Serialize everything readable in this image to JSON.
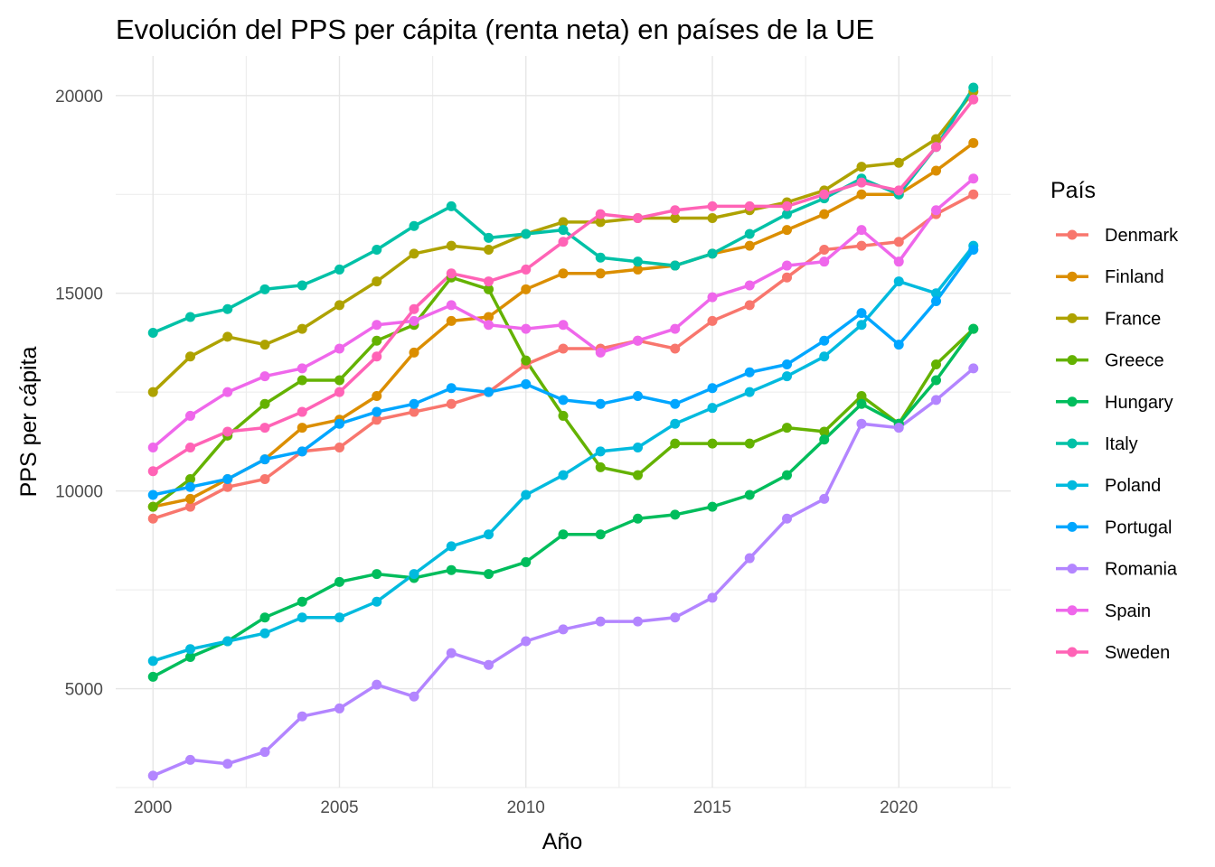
{
  "chart_data": {
    "type": "line",
    "title": "Evolución del PPS per cápita (renta neta) en países de la UE",
    "xlabel": "Año",
    "ylabel": "PPS per cápita",
    "xlim": [
      1999,
      2023
    ],
    "ylim": [
      2500,
      21000
    ],
    "xticks": [
      2000,
      2005,
      2010,
      2015,
      2020
    ],
    "yticks": [
      5000,
      10000,
      15000,
      20000
    ],
    "grid": true,
    "markers": true,
    "legend": {
      "title": "País",
      "position": "right"
    },
    "x": [
      2000,
      2001,
      2002,
      2003,
      2004,
      2005,
      2006,
      2007,
      2008,
      2009,
      2010,
      2011,
      2012,
      2013,
      2014,
      2015,
      2016,
      2017,
      2018,
      2019,
      2020,
      2021,
      2022
    ],
    "series": [
      {
        "name": "Denmark",
        "color": "#F8766D",
        "values": [
          9300,
          9600,
          10100,
          10300,
          11000,
          11100,
          11800,
          12000,
          12200,
          12500,
          13200,
          13600,
          13600,
          13800,
          13600,
          14300,
          14700,
          15400,
          16100,
          16200,
          16300,
          17000,
          17500
        ]
      },
      {
        "name": "Finland",
        "color": "#DB8E00",
        "values": [
          9600,
          9800,
          10300,
          10800,
          11600,
          11800,
          12400,
          13500,
          14300,
          14400,
          15100,
          15500,
          15500,
          15600,
          15700,
          16000,
          16200,
          16600,
          17000,
          17500,
          17500,
          18100,
          18800
        ]
      },
      {
        "name": "France",
        "color": "#AEA200",
        "values": [
          12500,
          13400,
          13900,
          13700,
          14100,
          14700,
          15300,
          16000,
          16200,
          16100,
          16500,
          16800,
          16800,
          16900,
          16900,
          16900,
          17100,
          17300,
          17600,
          18200,
          18300,
          18900,
          20100
        ]
      },
      {
        "name": "Greece",
        "color": "#64B200",
        "values": [
          9600,
          10300,
          11400,
          12200,
          12800,
          12800,
          13800,
          14200,
          15400,
          15100,
          13300,
          11900,
          10600,
          10400,
          11200,
          11200,
          11200,
          11600,
          11500,
          12400,
          11700,
          13200,
          14100
        ]
      },
      {
        "name": "Hungary",
        "color": "#00BD5C",
        "values": [
          5300,
          5800,
          6200,
          6800,
          7200,
          7700,
          7900,
          7800,
          8000,
          7900,
          8200,
          8900,
          8900,
          9300,
          9400,
          9600,
          9900,
          10400,
          11300,
          12200,
          11700,
          12800,
          14100
        ]
      },
      {
        "name": "Italy",
        "color": "#00C1A7",
        "values": [
          14000,
          14400,
          14600,
          15100,
          15200,
          15600,
          16100,
          16700,
          17200,
          16400,
          16500,
          16600,
          15900,
          15800,
          15700,
          16000,
          16500,
          17000,
          17400,
          17900,
          17500,
          18700,
          20200
        ]
      },
      {
        "name": "Poland",
        "color": "#00BADE",
        "values": [
          5700,
          6000,
          6200,
          6400,
          6800,
          6800,
          7200,
          7900,
          8600,
          8900,
          9900,
          10400,
          11000,
          11100,
          11700,
          12100,
          12500,
          12900,
          13400,
          14200,
          15300,
          15000,
          16200
        ]
      },
      {
        "name": "Portugal",
        "color": "#00A6FF",
        "values": [
          9900,
          10100,
          10300,
          10800,
          11000,
          11700,
          12000,
          12200,
          12600,
          12500,
          12700,
          12300,
          12200,
          12400,
          12200,
          12600,
          13000,
          13200,
          13800,
          14500,
          13700,
          14800,
          16100
        ]
      },
      {
        "name": "Romania",
        "color": "#B385FF",
        "values": [
          2800,
          3200,
          3100,
          3400,
          4300,
          4500,
          5100,
          4800,
          5900,
          5600,
          6200,
          6500,
          6700,
          6700,
          6800,
          7300,
          8300,
          9300,
          9800,
          11700,
          11600,
          12300,
          13100
        ]
      },
      {
        "name": "Spain",
        "color": "#EF67EB",
        "values": [
          11100,
          11900,
          12500,
          12900,
          13100,
          13600,
          14200,
          14300,
          14700,
          14200,
          14100,
          14200,
          13500,
          13800,
          14100,
          14900,
          15200,
          15700,
          15800,
          16600,
          15800,
          17100,
          17900
        ]
      },
      {
        "name": "Sweden",
        "color": "#FF63B6",
        "values": [
          10500,
          11100,
          11500,
          11600,
          12000,
          12500,
          13400,
          14600,
          15500,
          15300,
          15600,
          16300,
          17000,
          16900,
          17100,
          17200,
          17200,
          17200,
          17500,
          17800,
          17600,
          18700,
          19900
        ]
      }
    ]
  }
}
